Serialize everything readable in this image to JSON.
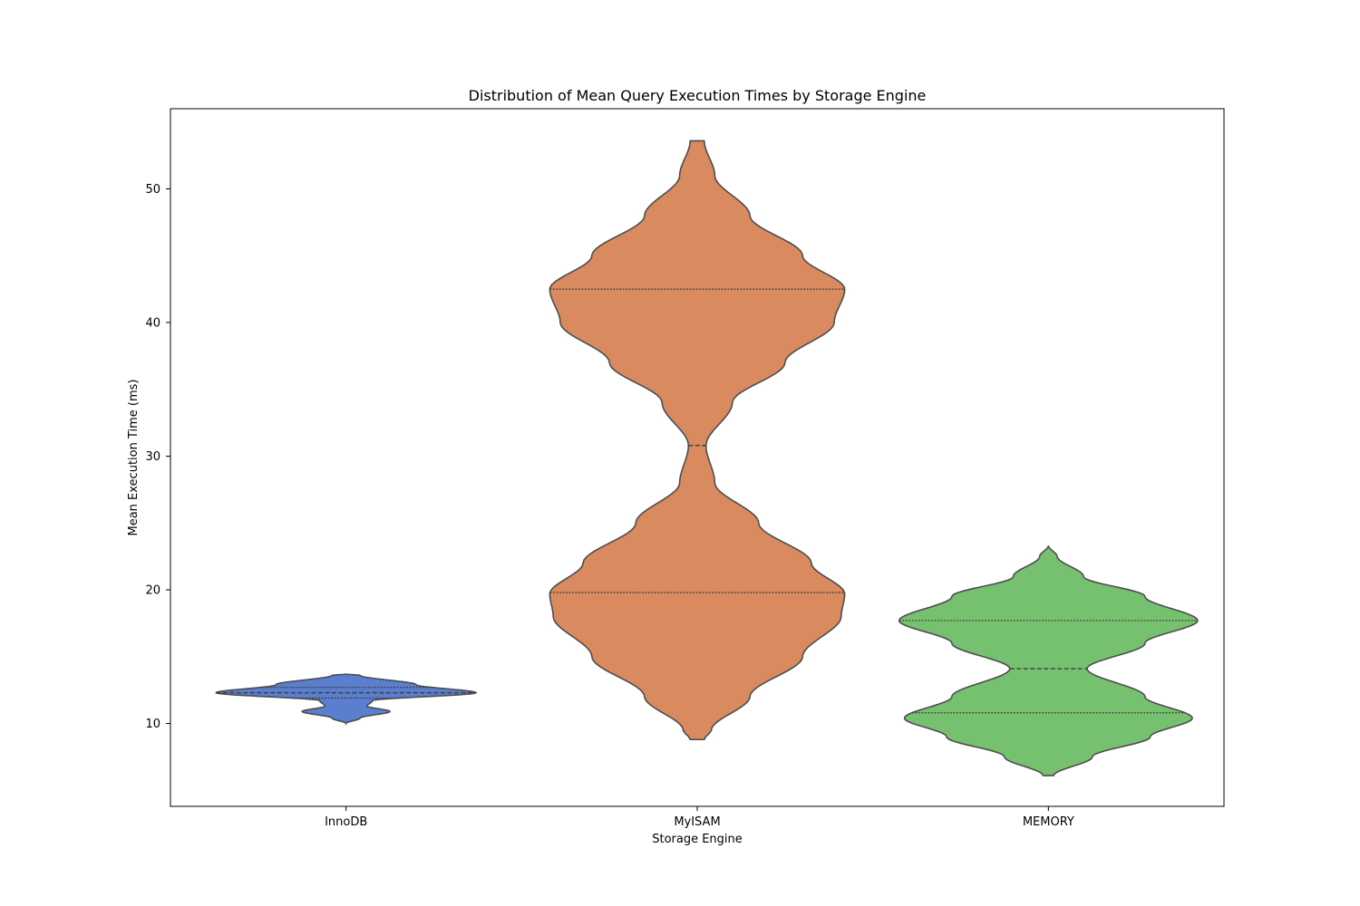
{
  "chart_data": {
    "type": "violin",
    "title": "Distribution of Mean Query Execution Times by Storage Engine",
    "xlabel": "Storage Engine",
    "ylabel": "Mean Execution Time (ms)",
    "ylim": [
      3.8,
      56
    ],
    "yticks": [
      10,
      20,
      30,
      40,
      50
    ],
    "grid": false,
    "categories": [
      "InnoDB",
      "MyISAM",
      "MEMORY"
    ],
    "series": [
      {
        "category": "InnoDB",
        "color": "#5a7fcf",
        "profile": [
          [
            10.0,
            0
          ],
          [
            10.4,
            0.08
          ],
          [
            10.9,
            0.25
          ],
          [
            11.3,
            0.12
          ],
          [
            11.7,
            0.15
          ],
          [
            12.3,
            0.74
          ],
          [
            12.9,
            0.4
          ],
          [
            13.6,
            0.08
          ],
          [
            13.7,
            0
          ]
        ],
        "quartiles": [
          11.9,
          12.3,
          12.7
        ]
      },
      {
        "category": "MyISAM",
        "color": "#d98a5f",
        "profile": [
          [
            8.8,
            0.04
          ],
          [
            9.5,
            0.08
          ],
          [
            12,
            0.3
          ],
          [
            15,
            0.6
          ],
          [
            18,
            0.82
          ],
          [
            19.7,
            0.84
          ],
          [
            22,
            0.65
          ],
          [
            25,
            0.35
          ],
          [
            28,
            0.1
          ],
          [
            30.8,
            0.05
          ],
          [
            34,
            0.2
          ],
          [
            37,
            0.5
          ],
          [
            40,
            0.78
          ],
          [
            42.5,
            0.84
          ],
          [
            45,
            0.6
          ],
          [
            48,
            0.3
          ],
          [
            51,
            0.1
          ],
          [
            53.6,
            0.04
          ]
        ],
        "quartiles": [
          19.8,
          30.8,
          42.5
        ]
      },
      {
        "category": "MEMORY",
        "color": "#76c16f",
        "profile": [
          [
            6.1,
            0.03
          ],
          [
            7.5,
            0.25
          ],
          [
            9,
            0.58
          ],
          [
            10.4,
            0.82
          ],
          [
            12,
            0.55
          ],
          [
            14.1,
            0.22
          ],
          [
            16,
            0.55
          ],
          [
            17.7,
            0.85
          ],
          [
            19.5,
            0.55
          ],
          [
            21,
            0.2
          ],
          [
            22.5,
            0.05
          ],
          [
            23.3,
            0
          ]
        ],
        "quartiles": [
          10.8,
          14.1,
          17.7
        ]
      }
    ]
  }
}
